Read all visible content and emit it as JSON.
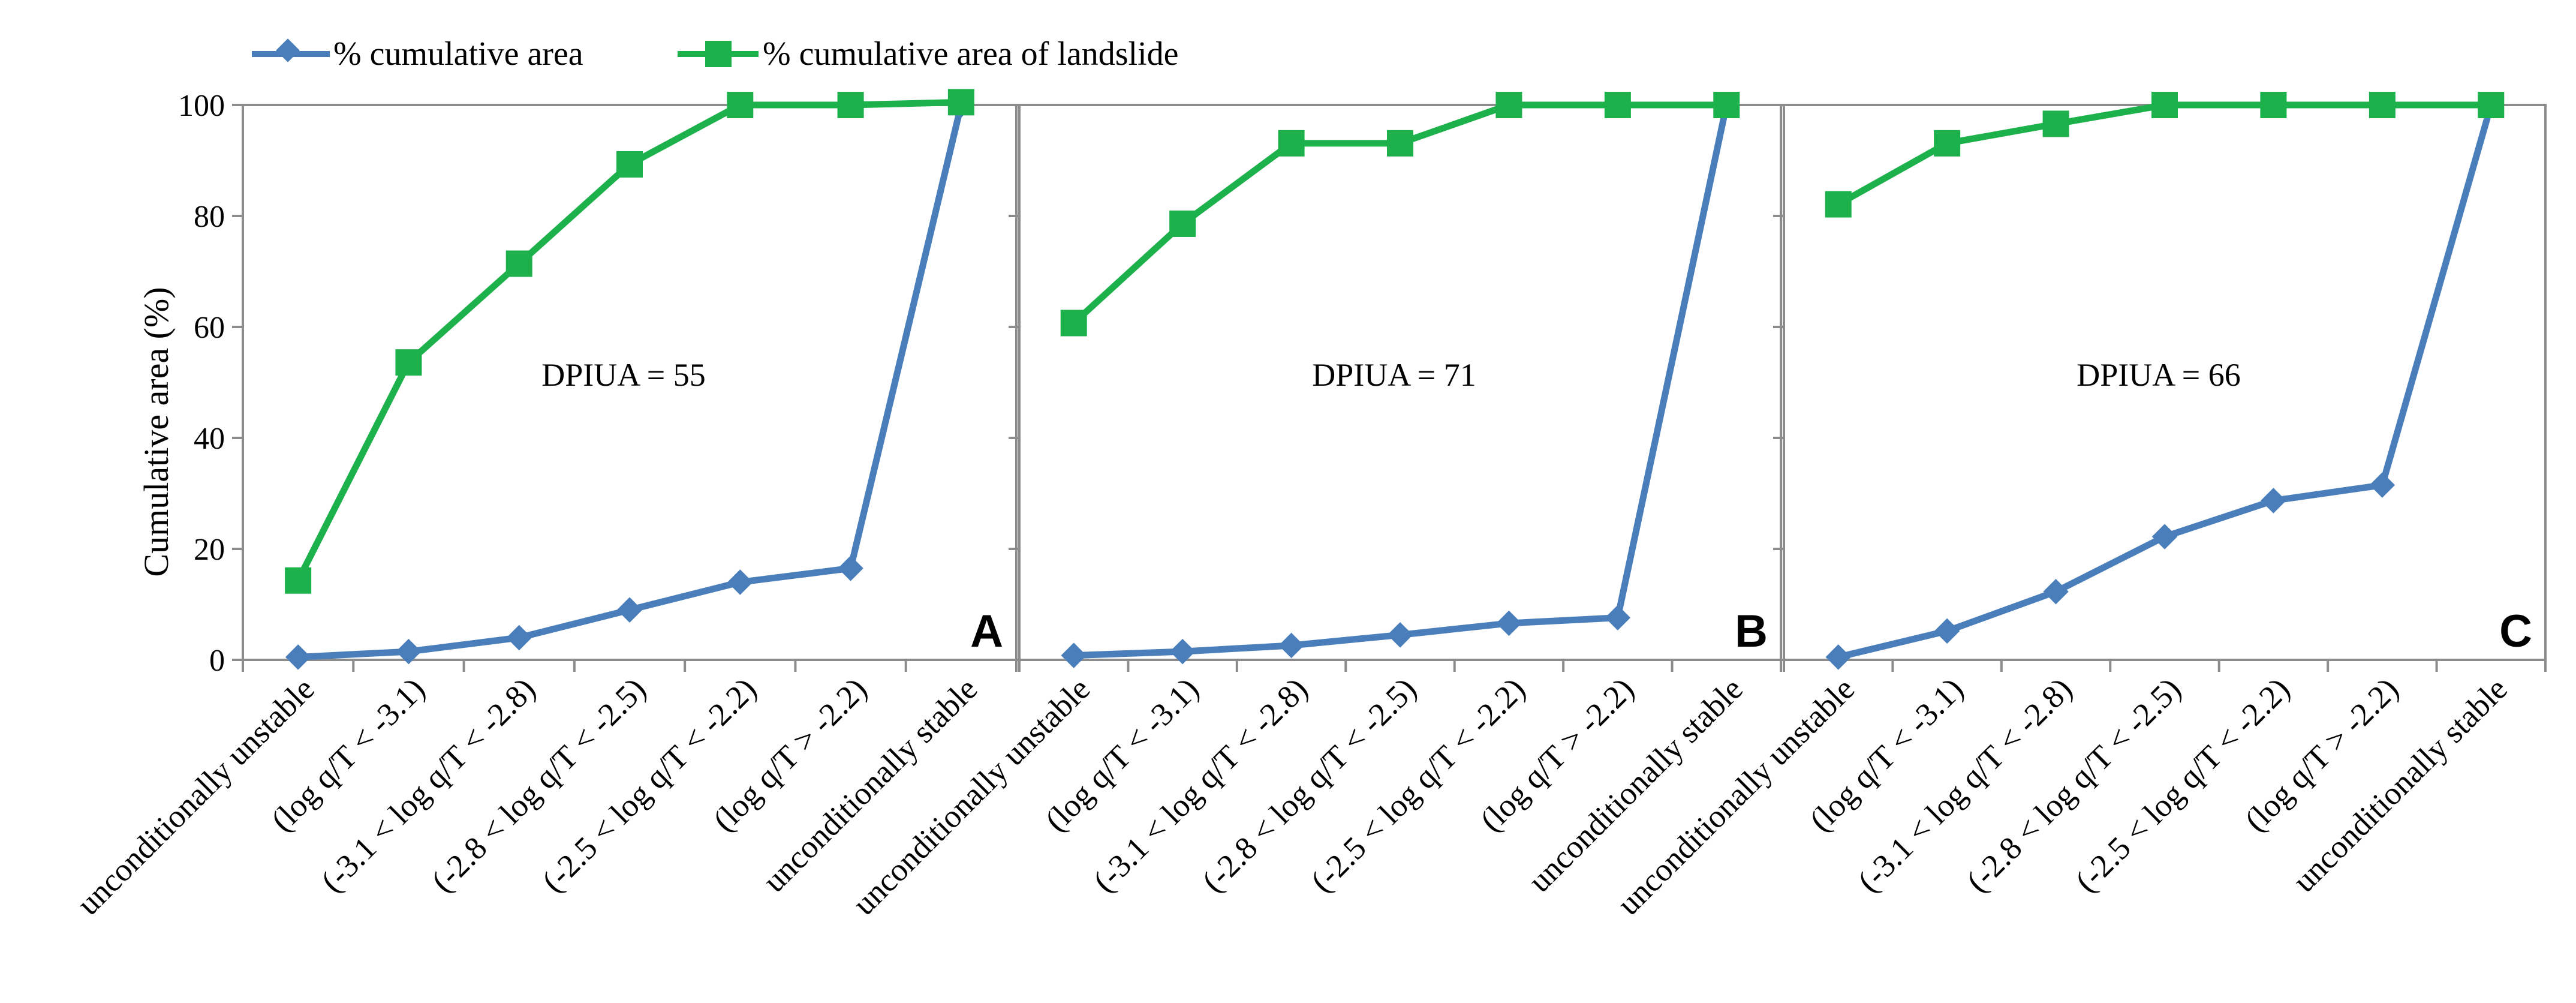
{
  "chart_data": {
    "type": "line",
    "ylabel": "Cumulative area (%)",
    "ylim": [
      0,
      100
    ],
    "yticks": [
      "0",
      "20",
      "40",
      "60",
      "80",
      "100"
    ],
    "categories": [
      "unconditionally unstable",
      "(log q/T < -3.1)",
      "(-3.1 < log q/T < -2.8)",
      "(-2.8 < log q/T < -2.5)",
      "(-2.5 < log q/T < -2.2)",
      "(log q/T > -2.2)",
      "unconditionally stable"
    ],
    "legend": [
      {
        "name": "% cumulative area",
        "color": "#4a7ebb",
        "marker": "diamond"
      },
      {
        "name": "% cumulative area of landslide",
        "color": "#1db14b",
        "marker": "square"
      }
    ],
    "panels": [
      {
        "letter": "A",
        "annotation": "DPIUA = 55",
        "series": [
          {
            "name": "% cumulative area",
            "values": [
              0.5,
              1.5,
              4,
              9,
              14,
              16.5,
              100
            ]
          },
          {
            "name": "% cumulative area of landslide",
            "values": [
              14.3,
              53.6,
              71.4,
              89.3,
              100,
              100,
              100.5
            ]
          }
        ]
      },
      {
        "letter": "B",
        "annotation": "DPIUA = 71",
        "series": [
          {
            "name": "% cumulative area",
            "values": [
              0.8,
              1.5,
              2.6,
              4.5,
              6.6,
              7.6,
              100
            ]
          },
          {
            "name": "% cumulative area of landslide",
            "values": [
              60.7,
              78.6,
              93.1,
              93.1,
              100,
              100,
              100
            ]
          }
        ]
      },
      {
        "letter": "C",
        "annotation": "DPIUA = 66",
        "series": [
          {
            "name": "% cumulative area",
            "values": [
              0.5,
              5.2,
              12.3,
              22.2,
              28.7,
              31.5,
              100
            ]
          },
          {
            "name": "% cumulative area of landslide",
            "values": [
              82.1,
              93.1,
              96.6,
              100,
              100,
              100,
              100
            ]
          }
        ]
      }
    ]
  }
}
